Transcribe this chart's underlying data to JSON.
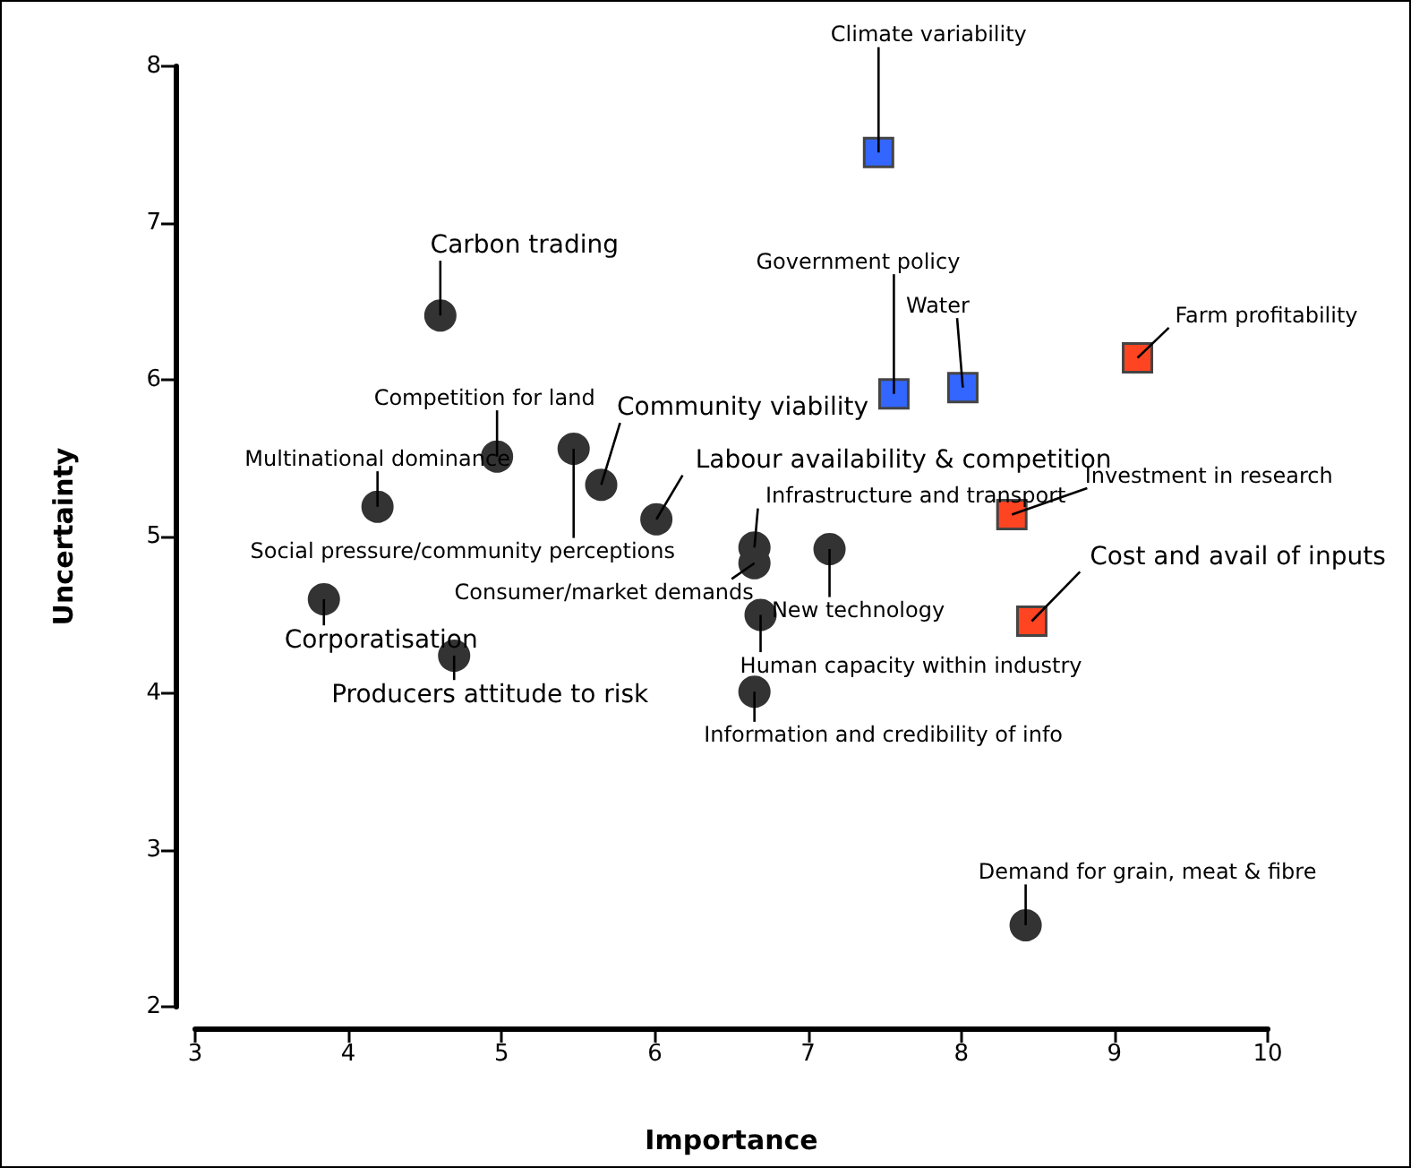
{
  "chart_data": {
    "type": "scatter",
    "xlabel": "Importance",
    "ylabel": "Uncertainty",
    "xlim": [
      3,
      10
    ],
    "xticks": [
      3,
      4,
      5,
      6,
      7,
      8,
      9,
      10
    ],
    "ylim": [
      2,
      8
    ],
    "yticks": [
      2,
      3,
      4,
      5,
      6,
      7,
      8
    ],
    "grid": false,
    "series": [
      {
        "color": "#333333",
        "marker": "circle",
        "x": [
          4.6,
          4.97,
          4.19,
          5.47,
          5.65,
          6.01,
          6.65,
          6.65,
          7.14,
          6.69,
          6.65,
          3.84,
          4.69,
          8.42
        ],
        "values": [
          6.41,
          5.51,
          5.19,
          5.56,
          5.33,
          5.11,
          4.93,
          4.83,
          4.92,
          4.5,
          4.01,
          4.6,
          4.24,
          2.52
        ]
      },
      {
        "color": "#3366ff",
        "marker": "square",
        "x": [
          7.46,
          7.56,
          8.01
        ],
        "values": [
          7.45,
          5.91,
          5.95
        ]
      },
      {
        "color": "#ff4422",
        "marker": "square",
        "x": [
          9.15,
          8.33,
          8.46
        ],
        "values": [
          6.14,
          5.14,
          4.46
        ]
      }
    ],
    "annotations": [
      {
        "text": "Carbon trading",
        "x": 4.6,
        "y": 6.41
      },
      {
        "text": "Competition for land",
        "x": 4.97,
        "y": 5.51
      },
      {
        "text": "Multinational dominance",
        "x": 4.19,
        "y": 5.19
      },
      {
        "text": "Social pressure/community perceptions",
        "x": 5.47,
        "y": 5.56
      },
      {
        "text": "Community viability",
        "x": 5.65,
        "y": 5.33
      },
      {
        "text": "Labour availability & competition",
        "x": 6.01,
        "y": 5.11
      },
      {
        "text": "Infrastructure and transport",
        "x": 6.65,
        "y": 4.93
      },
      {
        "text": "Consumer/market demands",
        "x": 6.65,
        "y": 4.83
      },
      {
        "text": "New technology",
        "x": 7.14,
        "y": 4.92
      },
      {
        "text": "Human capacity within industry",
        "x": 6.69,
        "y": 4.5
      },
      {
        "text": "Information and credibility of info",
        "x": 6.65,
        "y": 4.01
      },
      {
        "text": "Corporatisation",
        "x": 3.84,
        "y": 4.6
      },
      {
        "text": "Producers attitude to risk",
        "x": 4.69,
        "y": 4.24
      },
      {
        "text": "Demand for grain, meat & fibre",
        "x": 8.42,
        "y": 2.52
      },
      {
        "text": "Climate variability",
        "x": 7.46,
        "y": 7.45
      },
      {
        "text": "Government policy",
        "x": 7.56,
        "y": 5.91
      },
      {
        "text": "Water",
        "x": 8.01,
        "y": 5.95
      },
      {
        "text": "Farm profitability",
        "x": 9.15,
        "y": 6.14
      },
      {
        "text": "Investment in research",
        "x": 8.33,
        "y": 5.14
      },
      {
        "text": "Cost and avail of inputs",
        "x": 8.46,
        "y": 4.46
      }
    ]
  }
}
